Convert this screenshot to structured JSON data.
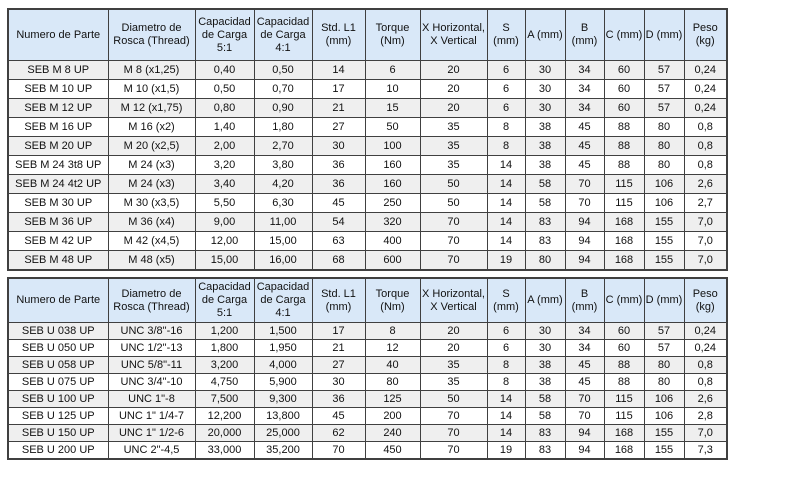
{
  "colors": {
    "header_bg": "#d9e8f8",
    "row_alt": "#efefef",
    "row_plain": "#ffffff",
    "border": "#404040",
    "text": "#111111"
  },
  "columns": [
    "Numero de Parte",
    "Diametro de\nRosca (Thread)",
    "Capacidad\nde Carga\n5:1",
    "Capacidad\nde Carga\n4:1",
    "Std. L1\n(mm)",
    "Torque\n(Nm)",
    "X Horizontal,\nX Vertical",
    "S (mm)",
    "A (mm)",
    "B (mm)",
    "C (mm)",
    "D (mm)",
    "Peso\n(kg)"
  ],
  "tables": [
    {
      "name": "metric-thread-table",
      "rows": [
        [
          "SEB M 8 UP",
          "M 8 (x1,25)",
          "0,40",
          "0,50",
          "14",
          "6",
          "20",
          "6",
          "30",
          "34",
          "60",
          "57",
          "0,24"
        ],
        [
          "SEB M 10 UP",
          "M 10 (x1,5)",
          "0,50",
          "0,70",
          "17",
          "10",
          "20",
          "6",
          "30",
          "34",
          "60",
          "57",
          "0,24"
        ],
        [
          "SEB M 12 UP",
          "M 12 (x1,75)",
          "0,80",
          "0,90",
          "21",
          "15",
          "20",
          "6",
          "30",
          "34",
          "60",
          "57",
          "0,24"
        ],
        [
          "SEB M 16 UP",
          "M 16 (x2)",
          "1,40",
          "1,80",
          "27",
          "50",
          "35",
          "8",
          "38",
          "45",
          "88",
          "80",
          "0,8"
        ],
        [
          "SEB M 20 UP",
          "M 20 (x2,5)",
          "2,00",
          "2,70",
          "30",
          "100",
          "35",
          "8",
          "38",
          "45",
          "88",
          "80",
          "0,8"
        ],
        [
          "SEB M 24 3t8 UP",
          "M 24 (x3)",
          "3,20",
          "3,80",
          "36",
          "160",
          "35",
          "14",
          "38",
          "45",
          "88",
          "80",
          "0,8"
        ],
        [
          "SEB M 24 4t2 UP",
          "M 24 (x3)",
          "3,40",
          "4,20",
          "36",
          "160",
          "50",
          "14",
          "58",
          "70",
          "115",
          "106",
          "2,6"
        ],
        [
          "SEB M 30 UP",
          "M 30 (x3,5)",
          "5,50",
          "6,30",
          "45",
          "250",
          "50",
          "14",
          "58",
          "70",
          "115",
          "106",
          "2,7"
        ],
        [
          "SEB M 36 UP",
          "M 36 (x4)",
          "9,00",
          "11,00",
          "54",
          "320",
          "70",
          "14",
          "83",
          "94",
          "168",
          "155",
          "7,0"
        ],
        [
          "SEB M 42 UP",
          "M 42 (x4,5)",
          "12,00",
          "15,00",
          "63",
          "400",
          "70",
          "14",
          "83",
          "94",
          "168",
          "155",
          "7,0"
        ],
        [
          "SEB M 48 UP",
          "M 48 (x5)",
          "15,00",
          "16,00",
          "68",
          "600",
          "70",
          "19",
          "80",
          "94",
          "168",
          "155",
          "7,0"
        ]
      ]
    },
    {
      "name": "unc-thread-table",
      "rows": [
        [
          "SEB U 038 UP",
          "UNC 3/8\"-16",
          "1,200",
          "1,500",
          "17",
          "8",
          "20",
          "6",
          "30",
          "34",
          "60",
          "57",
          "0,24"
        ],
        [
          "SEB U 050 UP",
          "UNC 1/2\"-13",
          "1,800",
          "1,950",
          "21",
          "12",
          "20",
          "6",
          "30",
          "34",
          "60",
          "57",
          "0,24"
        ],
        [
          "SEB U 058 UP",
          "UNC 5/8\"-11",
          "3,200",
          "4,000",
          "27",
          "40",
          "35",
          "8",
          "38",
          "45",
          "88",
          "80",
          "0,8"
        ],
        [
          "SEB U 075 UP",
          "UNC 3/4\"-10",
          "4,750",
          "5,900",
          "30",
          "80",
          "35",
          "8",
          "38",
          "45",
          "88",
          "80",
          "0,8"
        ],
        [
          "SEB U 100 UP",
          "UNC 1\"-8",
          "7,500",
          "9,300",
          "36",
          "125",
          "50",
          "14",
          "58",
          "70",
          "115",
          "106",
          "2,6"
        ],
        [
          "SEB U 125 UP",
          "UNC 1\" 1/4-7",
          "12,200",
          "13,800",
          "45",
          "200",
          "70",
          "14",
          "58",
          "70",
          "115",
          "106",
          "2,8"
        ],
        [
          "SEB U 150 UP",
          "UNC 1\" 1/2-6",
          "20,000",
          "25,000",
          "62",
          "240",
          "70",
          "14",
          "83",
          "94",
          "168",
          "155",
          "7,0"
        ],
        [
          "SEB U 200 UP",
          "UNC 2\"-4,5",
          "33,000",
          "35,200",
          "70",
          "450",
          "70",
          "19",
          "83",
          "94",
          "168",
          "155",
          "7,3"
        ]
      ]
    }
  ]
}
